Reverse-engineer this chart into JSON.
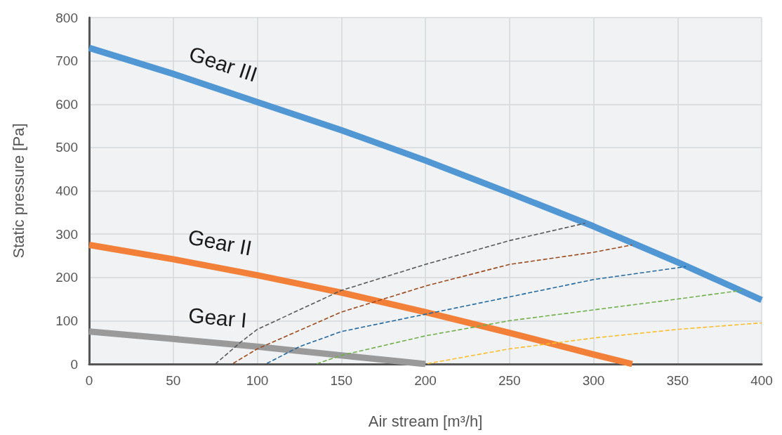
{
  "chart_data": {
    "type": "line",
    "xlabel": "Air stream [m³/h]",
    "ylabel": "Static pressure [Pa]",
    "xlim": [
      0,
      400
    ],
    "xticks": [
      0,
      50,
      100,
      150,
      200,
      250,
      300,
      350,
      400
    ],
    "ylim": [
      0,
      800
    ],
    "yticks": [
      0,
      100,
      200,
      300,
      400,
      500,
      600,
      700,
      800
    ],
    "grid": true,
    "legend": false,
    "marker": "none",
    "series": [
      {
        "name": "Gear III",
        "color": "#5097d3",
        "line_style": "solid",
        "x": [
          0,
          50,
          100,
          150,
          200,
          250,
          300,
          350,
          400
        ],
        "values": [
          730,
          670,
          605,
          540,
          470,
          395,
          318,
          235,
          148
        ]
      },
      {
        "name": "Gear II",
        "color": "#f28038",
        "line_style": "solid",
        "x": [
          0,
          50,
          100,
          150,
          200,
          250,
          300,
          323
        ],
        "values": [
          275,
          242,
          205,
          165,
          120,
          72,
          22,
          0
        ]
      },
      {
        "name": "Gear I",
        "color": "#9a9a9a",
        "line_style": "solid",
        "x": [
          0,
          50,
          100,
          150,
          200
        ],
        "values": [
          75,
          58,
          40,
          20,
          0
        ]
      },
      {
        "color": "#595959",
        "line_style": "dashed",
        "x": [
          75,
          90,
          100,
          150,
          200,
          250,
          295
        ],
        "values": [
          0,
          50,
          80,
          170,
          230,
          285,
          325
        ]
      },
      {
        "color": "#9e4a1d",
        "line_style": "dashed",
        "x": [
          85,
          100,
          150,
          200,
          250,
          300,
          323
        ],
        "values": [
          0,
          35,
          120,
          180,
          230,
          258,
          275
        ]
      },
      {
        "color": "#23699f",
        "line_style": "dashed",
        "x": [
          105,
          125,
          150,
          200,
          250,
          300,
          355
        ],
        "values": [
          0,
          40,
          75,
          115,
          155,
          195,
          225
        ]
      },
      {
        "color": "#70b04a",
        "line_style": "dashed",
        "x": [
          135,
          150,
          200,
          250,
          300,
          350,
          388
        ],
        "values": [
          0,
          20,
          65,
          100,
          125,
          150,
          170
        ]
      },
      {
        "color": "#fbbd2a",
        "line_style": "dashed",
        "x": [
          200,
          250,
          300,
          350,
          400
        ],
        "values": [
          0,
          35,
          60,
          80,
          95
        ]
      }
    ]
  }
}
